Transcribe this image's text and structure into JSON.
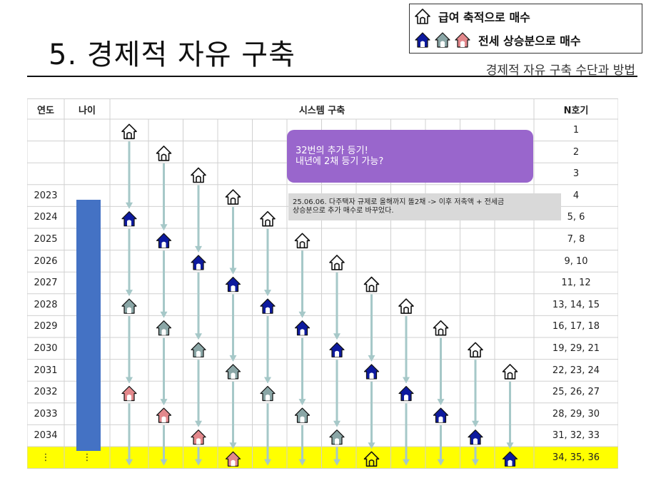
{
  "page": {
    "title": "5. 경제적 자유 구축",
    "subtitle": "경제적 자유 구축 수단과 방법"
  },
  "legend": {
    "item1": "급여 축적으로 매수",
    "item2": "전세 상승분으로 매수"
  },
  "table": {
    "headers": {
      "year": "연도",
      "age": "나이",
      "system": "시스템 구축",
      "n": "N호기"
    },
    "years": [
      "",
      "",
      "",
      "2023",
      "2024",
      "2025",
      "2026",
      "2027",
      "2028",
      "2029",
      "2030",
      "2031",
      "2032",
      "2033",
      "2034",
      "⋮"
    ],
    "age_last_row": "⋮",
    "n_values": [
      "1",
      "2",
      "3",
      "4",
      "5, 6",
      "7, 8",
      "9, 10",
      "11, 12",
      "13, 14, 15",
      "16, 17, 18",
      "19, 29, 21",
      "22, 23, 24",
      "25, 26, 27",
      "28, 29, 30",
      "31, 32, 33",
      "34, 35, 36"
    ]
  },
  "callouts": {
    "purple_line1": "32번의 추가 등기!",
    "purple_line2": "내년에 2채 등기 가능?",
    "note_line1": "25.06.06. 다주택자 규제로 올해까지 똘2채 -> 이후 저축액 + 전세금",
    "note_line2": "상승분으로 추가 매수로 바꾸었다."
  },
  "colors": {
    "highlight_row": "#ffff00",
    "age_bar": "#4472c4",
    "purple_callout": "#9966cc",
    "arrow": "#a6c8c8",
    "house_outline": "#111111",
    "house_blue": "#0d1a9e",
    "house_gray": "#8aa6a6",
    "house_pink": "#e3888c"
  },
  "icons": {
    "house_outline": "house-outline-icon",
    "house_blue": "house-blue-icon",
    "house_gray": "house-gray-icon",
    "house_pink": "house-pink-icon"
  }
}
